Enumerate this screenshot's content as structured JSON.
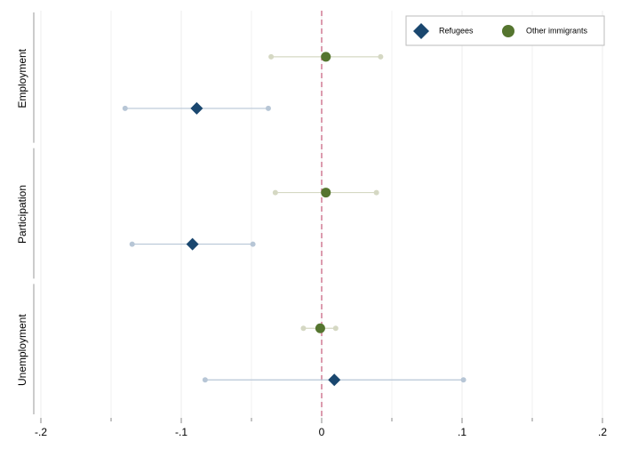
{
  "chart_data": {
    "type": "coefplot",
    "categories": [
      "Employment",
      "Participation",
      "Unemployment"
    ],
    "series": [
      {
        "name": "Refugees",
        "color": "#1a476f",
        "ci_color": "#b7c6d6",
        "marker": "diamond",
        "values": [
          -0.089,
          -0.092,
          0.009
        ],
        "lower": [
          -0.14,
          -0.135,
          -0.083
        ],
        "upper": [
          -0.038,
          -0.049,
          0.101
        ]
      },
      {
        "name": "Other immigrants",
        "color": "#55752f",
        "ci_color": "#d5d8c3",
        "marker": "circle",
        "values": [
          0.003,
          0.003,
          -0.001
        ],
        "lower": [
          -0.036,
          -0.033,
          -0.013
        ],
        "upper": [
          0.042,
          0.039,
          0.01
        ]
      }
    ],
    "xlim": [
      -0.2,
      0.2
    ],
    "xticks": [
      {
        "value": -0.2,
        "label": "-.2"
      },
      {
        "value": -0.1,
        "label": "-.1"
      },
      0,
      {
        "value": 0.1,
        "label": ".1"
      },
      {
        "value": 0.2,
        "label": ".2"
      }
    ],
    "xminorticks": [
      -0.15,
      -0.05,
      0.05,
      0.15
    ],
    "xline": 0,
    "xline_color": "#d07a94",
    "grid": true,
    "legend": "top-right"
  }
}
